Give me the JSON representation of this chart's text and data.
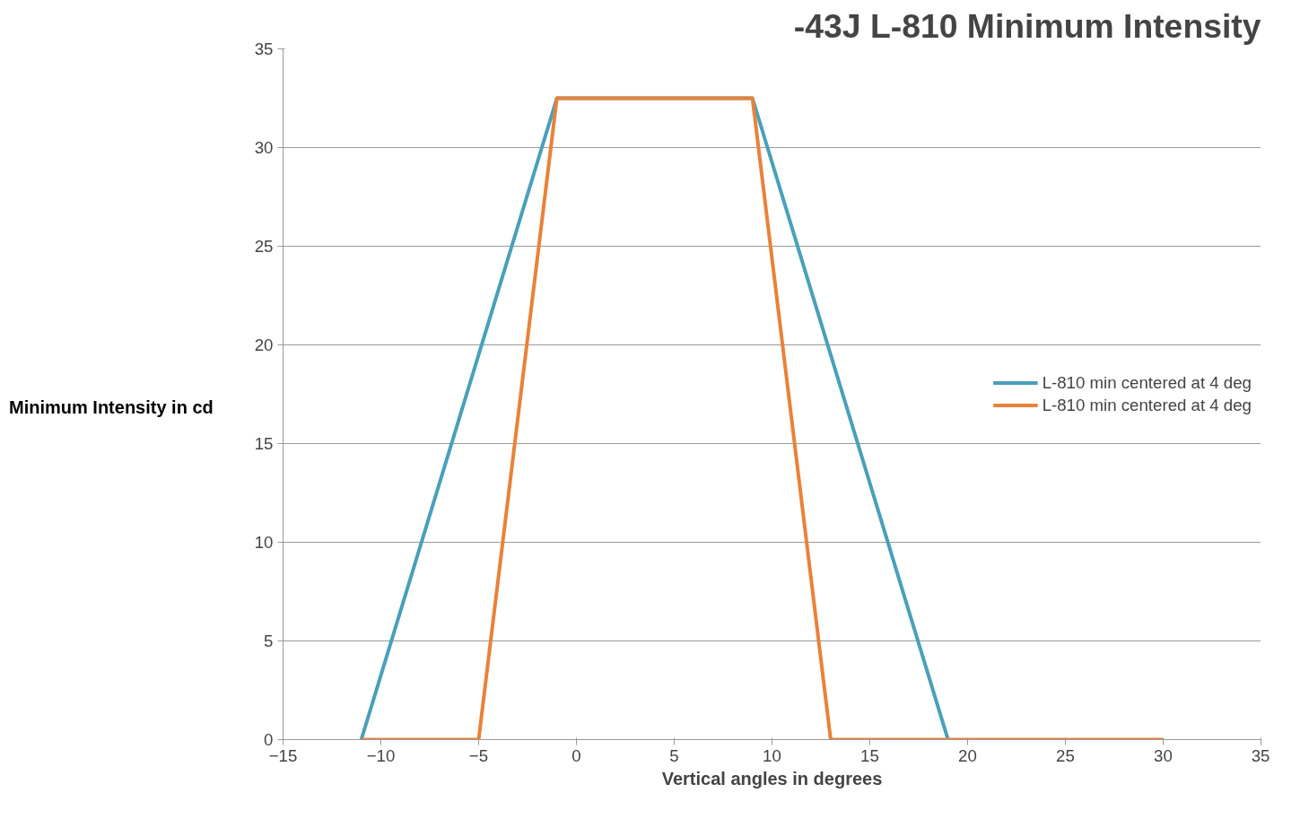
{
  "chart_data": {
    "type": "line",
    "title": "-43J L-810 Minimum Intensity",
    "xlabel": "Vertical angles in degrees",
    "ylabel": "Minimum Intensity in cd",
    "series": [
      {
        "name": "L-810 min centered at 4 deg",
        "color": "#4a9fbb",
        "x": [
          -11,
          -1,
          9,
          19
        ],
        "values": [
          0,
          32.5,
          32.5,
          0
        ]
      },
      {
        "name": "L-810 min centered at 4 deg",
        "color": "#e8823a",
        "x": [
          -11,
          -5,
          -1,
          9,
          13,
          30
        ],
        "values": [
          0,
          0,
          32.5,
          32.5,
          0,
          0
        ]
      }
    ],
    "xlim": [
      -15,
      35
    ],
    "xticks": [
      -15,
      -10,
      -5,
      0,
      5,
      10,
      15,
      20,
      25,
      30,
      35
    ],
    "ylim": [
      0,
      35
    ],
    "yticks": [
      0,
      5,
      10,
      15,
      20,
      25,
      30,
      35
    ],
    "grid": "y",
    "legend": "right",
    "marker": "none",
    "line_style": "solid"
  }
}
